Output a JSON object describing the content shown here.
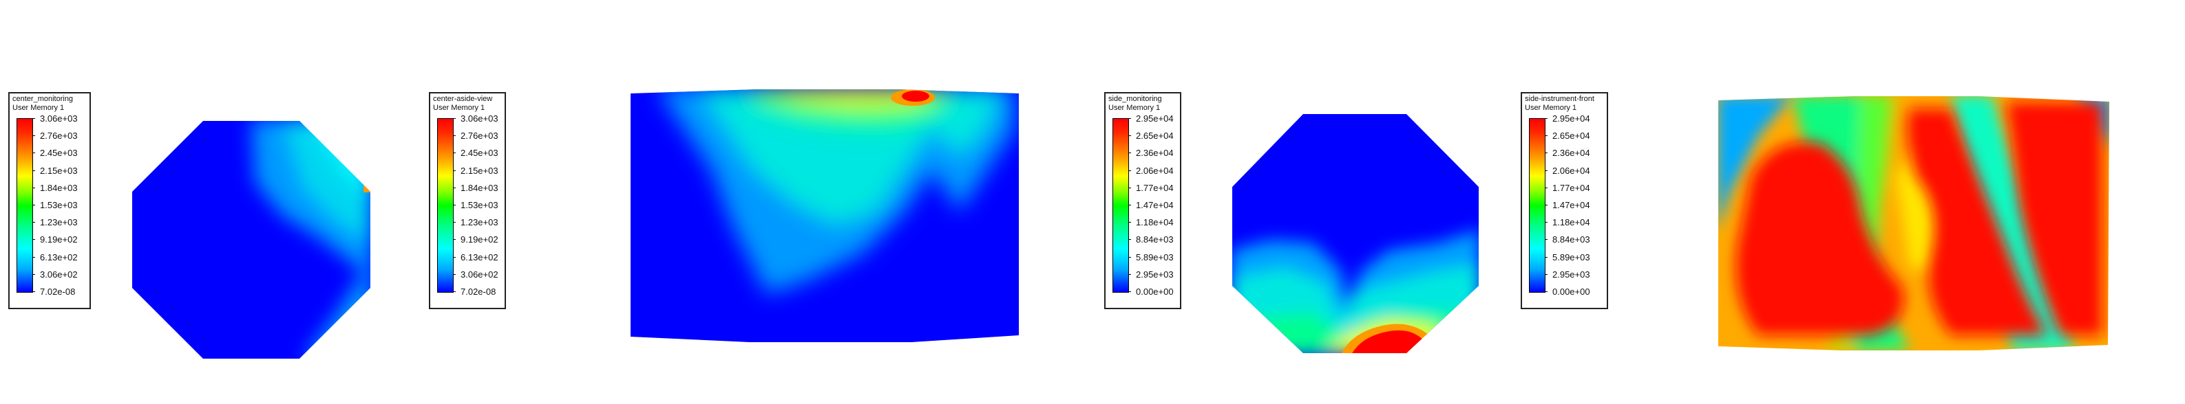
{
  "legends": [
    {
      "id": "legend-center-monitoring",
      "title": "center_monitoring",
      "subtitle": "User Memory 1",
      "labels": [
        "3.06e+03",
        "2.76e+03",
        "2.45e+03",
        "2.15e+03",
        "1.84e+03",
        "1.53e+03",
        "1.23e+03",
        "9.19e+02",
        "6.13e+02",
        "3.06e+02",
        "7.02e-08"
      ]
    },
    {
      "id": "legend-center-aside-view",
      "title": "center-aside-view",
      "subtitle": "User Memory 1",
      "labels": [
        "3.06e+03",
        "2.76e+03",
        "2.45e+03",
        "2.15e+03",
        "1.84e+03",
        "1.53e+03",
        "1.23e+03",
        "9.19e+02",
        "6.13e+02",
        "3.06e+02",
        "7.02e-08"
      ]
    },
    {
      "id": "legend-side-monitoring",
      "title": "side_monitoring",
      "subtitle": "User Memory 1",
      "labels": [
        "2.95e+04",
        "2.65e+04",
        "2.36e+04",
        "2.06e+04",
        "1.77e+04",
        "1.47e+04",
        "1.18e+04",
        "8.84e+03",
        "5.89e+03",
        "2.95e+03",
        "0.00e+00"
      ]
    },
    {
      "id": "legend-side-instrument-front",
      "title": "side-instrument-front",
      "subtitle": "User Memory 1",
      "labels": [
        "2.95e+04",
        "2.65e+04",
        "2.36e+04",
        "2.06e+04",
        "1.77e+04",
        "1.47e+04",
        "1.18e+04",
        "8.84e+03",
        "5.89e+03",
        "2.95e+03",
        "0.00e+00"
      ]
    }
  ],
  "colormap": {
    "red": "#ff0000",
    "orange": "#ff9900",
    "yellow": "#ffff00",
    "green": "#00ff00",
    "cyan": "#00ffff",
    "light_blue": "#00aaff",
    "blue": "#0000ff"
  },
  "plots": [
    {
      "id": "plot-center-monitoring",
      "shape": "octagon"
    },
    {
      "id": "plot-center-aside-view",
      "shape": "rectangle"
    },
    {
      "id": "plot-side-monitoring",
      "shape": "octagon"
    },
    {
      "id": "plot-side-instrument-front",
      "shape": "rectangle"
    }
  ]
}
